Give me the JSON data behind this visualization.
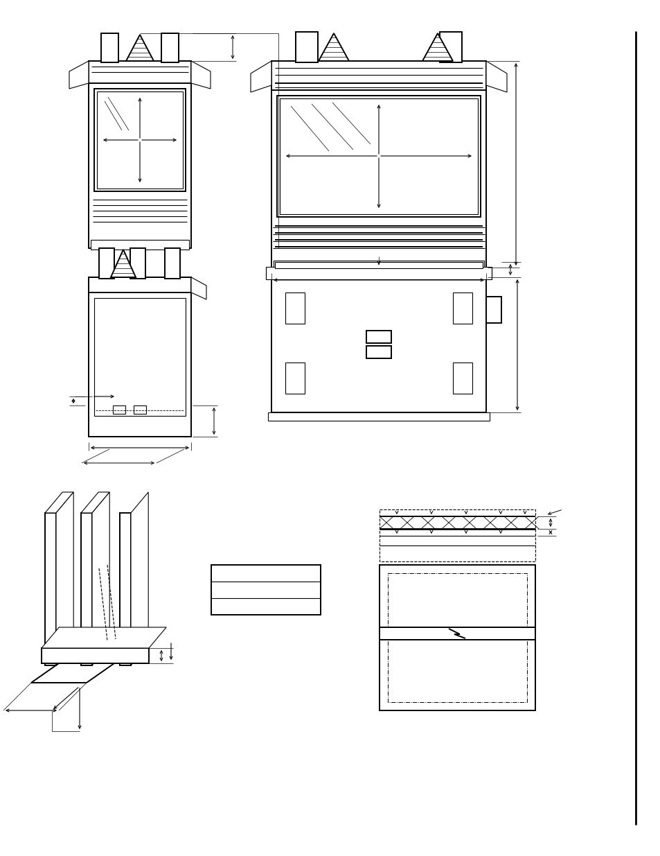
{
  "bg_color": "#ffffff",
  "lc": "#000000",
  "lw": 0.8,
  "lw2": 1.4,
  "lw3": 2.0
}
